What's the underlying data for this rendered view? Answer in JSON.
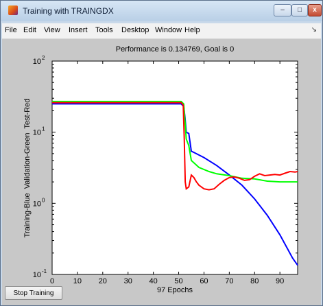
{
  "window": {
    "title": "Training with TRAINGDX",
    "minimize_glyph": "–",
    "maximize_glyph": "□",
    "close_glyph": "x"
  },
  "menu": {
    "items": [
      "File",
      "Edit",
      "View",
      "Insert",
      "Tools",
      "Desktop",
      "Window",
      "Help"
    ],
    "overflow_glyph": "↘"
  },
  "stop_button_label": "Stop Training",
  "chart_data": {
    "type": "line",
    "title": "Performance is 0.134769, Goal is 0",
    "xlabel": "97 Epochs",
    "ylabel": "Training-Blue  Validation-Green  Test-Red",
    "y_scale": "log",
    "xlim": [
      0,
      97
    ],
    "ylim": [
      0.1,
      100
    ],
    "x_ticks": [
      "0",
      "10",
      "20",
      "30",
      "40",
      "50",
      "60",
      "70",
      "80",
      "90"
    ],
    "y_ticks": [
      {
        "base": "10",
        "exp": "-1"
      },
      {
        "base": "10",
        "exp": "0"
      },
      {
        "base": "10",
        "exp": "1"
      },
      {
        "base": "10",
        "exp": "2"
      }
    ],
    "grid": false,
    "series": [
      {
        "color": "#0000ff",
        "points": [
          [
            0,
            25
          ],
          [
            51,
            25
          ],
          [
            52,
            23
          ],
          [
            52.5,
            16
          ],
          [
            53,
            10
          ],
          [
            54,
            9.6
          ],
          [
            55,
            5.4
          ],
          [
            56,
            5.2
          ],
          [
            60,
            4.4
          ],
          [
            65,
            3.4
          ],
          [
            70,
            2.5
          ],
          [
            75,
            1.8
          ],
          [
            80,
            1.15
          ],
          [
            85,
            0.68
          ],
          [
            90,
            0.36
          ],
          [
            95,
            0.17
          ],
          [
            97,
            0.134769
          ]
        ]
      },
      {
        "color": "#00ff00",
        "points": [
          [
            0,
            27
          ],
          [
            51,
            27
          ],
          [
            52,
            25
          ],
          [
            52.5,
            14
          ],
          [
            53,
            8
          ],
          [
            54,
            6.5
          ],
          [
            55,
            4
          ],
          [
            58,
            3.2
          ],
          [
            62,
            2.8
          ],
          [
            65,
            2.6
          ],
          [
            70,
            2.45
          ],
          [
            75,
            2.25
          ],
          [
            80,
            2.2
          ],
          [
            85,
            2.05
          ],
          [
            90,
            2.0
          ],
          [
            97,
            2.0
          ]
        ]
      },
      {
        "color": "#ff0000",
        "points": [
          [
            0,
            26
          ],
          [
            51,
            26
          ],
          [
            51.8,
            24
          ],
          [
            52.2,
            8
          ],
          [
            52.6,
            2
          ],
          [
            53,
            1.6
          ],
          [
            54,
            1.7
          ],
          [
            55,
            2.5
          ],
          [
            56,
            2.3
          ],
          [
            57,
            2.0
          ],
          [
            58,
            1.8
          ],
          [
            60,
            1.6
          ],
          [
            62,
            1.55
          ],
          [
            64,
            1.6
          ],
          [
            66,
            1.85
          ],
          [
            68,
            2.1
          ],
          [
            70,
            2.3
          ],
          [
            72,
            2.35
          ],
          [
            74,
            2.25
          ],
          [
            76,
            2.1
          ],
          [
            78,
            2.15
          ],
          [
            80,
            2.4
          ],
          [
            82,
            2.6
          ],
          [
            84,
            2.45
          ],
          [
            86,
            2.5
          ],
          [
            88,
            2.55
          ],
          [
            90,
            2.5
          ],
          [
            92,
            2.65
          ],
          [
            94,
            2.8
          ],
          [
            96,
            2.75
          ],
          [
            97,
            2.8
          ]
        ]
      }
    ]
  }
}
